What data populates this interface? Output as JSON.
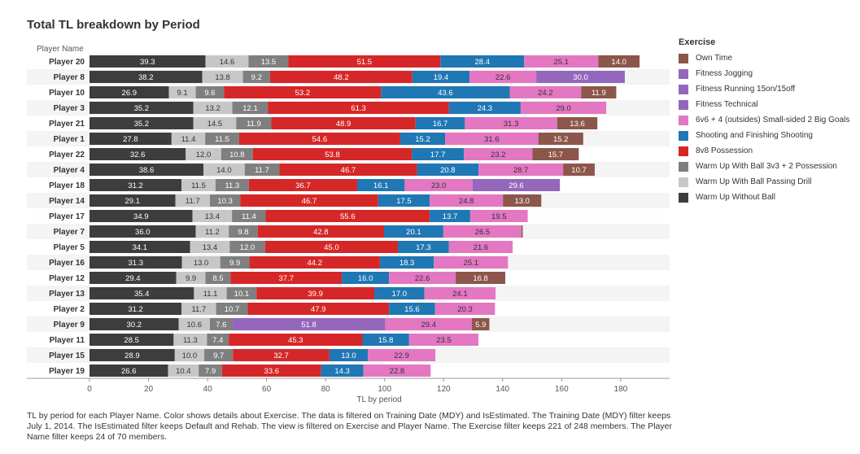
{
  "title": "Total TL breakdown by Period",
  "caption": "TL by period for each Player Name.  Color shows details about Exercise. The data is filtered on Training Date (MDY) and IsEstimated. The Training Date (MDY) filter keeps July 1, 2014. The IsEstimated filter keeps Default and Rehab. The view is filtered on Exercise and Player Name. The Exercise filter keeps 221 of 248 members. The Player Name filter keeps 24 of 70 members.",
  "chart_data": {
    "type": "bar",
    "orientation": "horizontal",
    "stacked": true,
    "title": "Total TL breakdown by Period",
    "xlabel": "TL by period",
    "ylabel": "Player Name",
    "xlim": [
      0,
      190
    ],
    "xticks": [
      0,
      20,
      40,
      60,
      80,
      100,
      120,
      140,
      160,
      180
    ],
    "legend_title": "Exercise",
    "legend_position": "right",
    "categories": [
      "Player 20",
      "Player 8",
      "Player 10",
      "Player 3",
      "Player 21",
      "Player 1",
      "Player 22",
      "Player 4",
      "Player 18",
      "Player 14",
      "Player 17",
      "Player 7",
      "Player 5",
      "Player 16",
      "Player 12",
      "Player 13",
      "Player 2",
      "Player 9",
      "Player 11",
      "Player 15",
      "Player 19"
    ],
    "series": [
      {
        "name": "Warm Up Without Ball",
        "color": "#3d3d3d",
        "label_color": "#ffffff",
        "values": [
          39.3,
          38.2,
          26.9,
          35.2,
          35.2,
          27.8,
          32.6,
          38.6,
          31.2,
          29.1,
          34.9,
          36.0,
          34.1,
          31.3,
          29.4,
          35.4,
          31.2,
          30.2,
          28.5,
          28.9,
          26.6
        ]
      },
      {
        "name": "Warm Up With Ball Passing Drill",
        "color": "#c7c7c7",
        "label_color": "#333333",
        "values": [
          14.6,
          13.8,
          9.1,
          13.2,
          14.5,
          11.4,
          12.0,
          14.0,
          11.5,
          11.7,
          13.4,
          11.2,
          13.4,
          13.0,
          9.9,
          11.1,
          11.7,
          10.6,
          11.3,
          10.0,
          10.4
        ]
      },
      {
        "name": "Warm Up With Ball 3v3 + 2 Possession",
        "color": "#7f7f7f",
        "label_color": "#ffffff",
        "values": [
          13.5,
          9.2,
          9.6,
          12.1,
          11.9,
          11.5,
          10.8,
          11.7,
          11.3,
          10.3,
          11.4,
          9.8,
          12.0,
          9.9,
          8.5,
          10.1,
          10.7,
          7.6,
          7.4,
          9.7,
          7.9
        ]
      },
      {
        "name": "8v8 Possession",
        "color": "#d62728",
        "label_color": "#ffffff",
        "values": [
          51.5,
          48.2,
          53.2,
          61.3,
          48.9,
          54.6,
          53.8,
          46.7,
          36.7,
          46.7,
          55.6,
          42.8,
          45.0,
          44.2,
          37.7,
          39.9,
          47.9,
          null,
          45.3,
          32.7,
          33.6
        ]
      },
      {
        "name": "Shooting and Finishing Shooting",
        "color": "#1f77b4",
        "label_color": "#ffffff",
        "values": [
          28.4,
          19.4,
          43.6,
          24.3,
          16.7,
          15.2,
          17.7,
          20.8,
          16.1,
          17.5,
          13.7,
          20.1,
          17.3,
          18.3,
          16.0,
          17.0,
          15.6,
          null,
          15.8,
          13.0,
          14.3
        ]
      },
      {
        "name": "6v6 + 4 (outsides) Small-sided 2 Big Goals",
        "color": "#e377c2",
        "label_color": "#333333",
        "values": [
          25.1,
          22.6,
          24.2,
          29.0,
          31.3,
          31.6,
          23.2,
          28.7,
          23.0,
          24.8,
          19.5,
          26.5,
          21.6,
          25.1,
          22.6,
          24.1,
          20.3,
          29.4,
          23.5,
          22.9,
          22.8
        ]
      },
      {
        "name": "Fitness Technical",
        "color": "#9467bd",
        "label_color": "#ffffff",
        "values": [
          null,
          null,
          null,
          null,
          null,
          null,
          null,
          null,
          null,
          null,
          null,
          null,
          null,
          null,
          null,
          null,
          null,
          null,
          null,
          null,
          null
        ]
      },
      {
        "name": "Fitness Running 15on/15off",
        "color": "#9467bd",
        "label_color": "#ffffff",
        "values": [
          null,
          30.0,
          null,
          null,
          null,
          null,
          null,
          null,
          29.6,
          null,
          null,
          null,
          null,
          null,
          null,
          null,
          null,
          null,
          null,
          null,
          null
        ]
      },
      {
        "name": "Fitness Jogging",
        "color": "#9467bd",
        "label_color": "#ffffff",
        "values": [
          null,
          null,
          null,
          null,
          null,
          null,
          null,
          null,
          null,
          null,
          null,
          null,
          null,
          null,
          null,
          null,
          null,
          51.8,
          null,
          null,
          null
        ]
      },
      {
        "name": "Own Time",
        "color": "#8c564b",
        "label_color": "#ffffff",
        "values": [
          14.0,
          null,
          11.9,
          null,
          13.6,
          15.2,
          15.7,
          10.7,
          null,
          13.0,
          null,
          0.4,
          null,
          null,
          16.8,
          null,
          null,
          5.9,
          null,
          null,
          null
        ]
      }
    ],
    "segment_order": [
      [
        "Warm Up Without Ball",
        "Warm Up With Ball Passing Drill",
        "Warm Up With Ball 3v3 + 2 Possession",
        "8v8 Possession",
        "Shooting and Finishing Shooting",
        "6v6 + 4 (outsides) Small-sided 2 Big Goals",
        "Fitness Running 15on/15off",
        "Fitness Jogging",
        "Own Time"
      ],
      [
        "Warm Up Without Ball",
        "Warm Up With Ball Passing Drill",
        "Warm Up With Ball 3v3 + 2 Possession",
        "Fitness Jogging",
        "6v6 + 4 (outsides) Small-sided 2 Big Goals",
        "Own Time"
      ]
    ],
    "segment_order_by_category": {
      "Player 9": 1
    }
  },
  "legend": {
    "title": "Exercise",
    "items": [
      {
        "label": "Own Time",
        "color": "#8c564b"
      },
      {
        "label": "Fitness Jogging",
        "color": "#9467bd"
      },
      {
        "label": "Fitness Running 15on/15off",
        "color": "#9467bd"
      },
      {
        "label": "Fitness Technical",
        "color": "#9467bd"
      },
      {
        "label": "6v6 + 4 (outsides) Small-sided 2 Big Goals",
        "color": "#e377c2"
      },
      {
        "label": "Shooting and Finishing Shooting",
        "color": "#1f77b4"
      },
      {
        "label": "8v8 Possession",
        "color": "#d62728"
      },
      {
        "label": "Warm Up With Ball 3v3 + 2 Possession",
        "color": "#7f7f7f"
      },
      {
        "label": "Warm Up With Ball Passing Drill",
        "color": "#c7c7c7"
      },
      {
        "label": "Warm Up Without Ball",
        "color": "#3d3d3d"
      }
    ]
  }
}
